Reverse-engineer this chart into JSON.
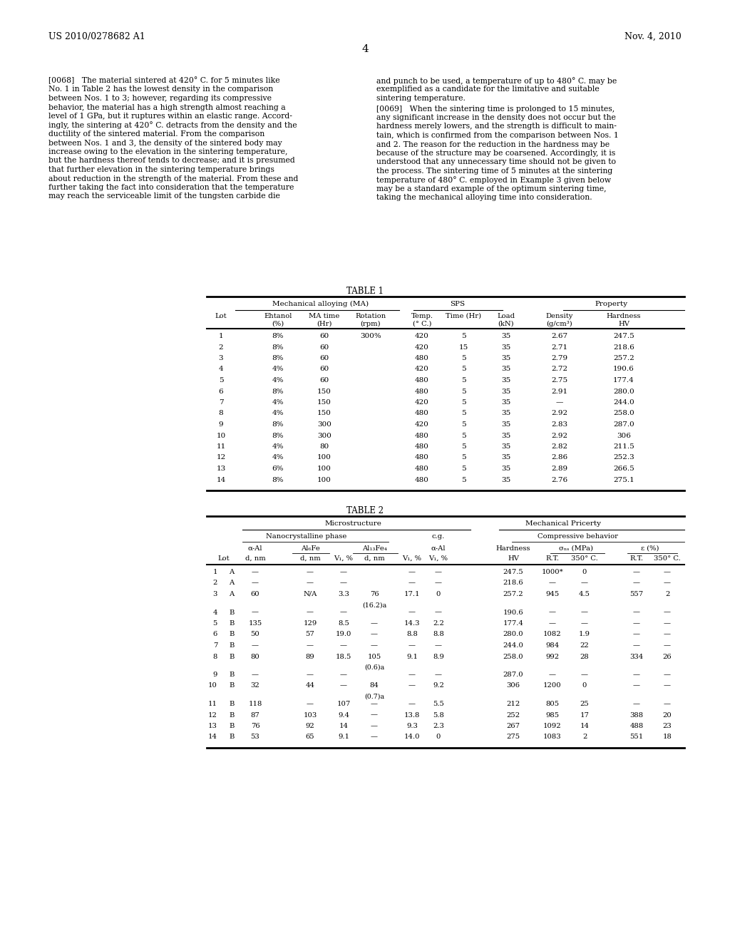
{
  "page_number": "4",
  "patent_number": "US 2010/0278682 A1",
  "patent_date": "Nov. 4, 2010",
  "background_color": "#ffffff",
  "para068_left_lines": [
    "[0068]   The material sintered at 420° C. for 5 minutes like",
    "No. 1 in Table 2 has the lowest density in the comparison",
    "between Nos. 1 to 3; however, regarding its compressive",
    "behavior, the material has a high strength almost reaching a",
    "level of 1 GPa, but it ruptures within an elastic range. Accord-",
    "ingly, the sintering at 420° C. detracts from the density and the",
    "ductility of the sintered material. From the comparison",
    "between Nos. 1 and 3, the density of the sintered body may",
    "increase owing to the elevation in the sintering temperature,",
    "but the hardness thereof tends to decrease; and it is presumed",
    "that further elevation in the sintering temperature brings",
    "about reduction in the strength of the material. From these and",
    "further taking the fact into consideration that the temperature",
    "may reach the serviceable limit of the tungsten carbide die"
  ],
  "para068_right_lines": [
    "and punch to be used, a temperature of up to 480° C. may be",
    "exemplified as a candidate for the limitative and suitable",
    "sintering temperature."
  ],
  "para069_right_lines": [
    "[0069]   When the sintering time is prolonged to 15 minutes,",
    "any significant increase in the density does not occur but the",
    "hardness merely lowers, and the strength is difficult to main-",
    "tain, which is confirmed from the comparison between Nos. 1",
    "and 2. The reason for the reduction in the hardness may be",
    "because of the structure may be coarsened. Accordingly, it is",
    "understood that any unnecessary time should not be given to",
    "the process. The sintering time of 5 minutes at the sintering",
    "temperature of 480° C. employed in Example 3 given below",
    "may be a standard example of the optimum sintering time,",
    "taking the mechanical alloying time into consideration."
  ],
  "table1_data": [
    [
      "1",
      "8%",
      "60",
      "300%",
      "420",
      "5",
      "35",
      "2.67",
      "247.5"
    ],
    [
      "2",
      "8%",
      "60",
      "",
      "420",
      "15",
      "35",
      "2.71",
      "218.6"
    ],
    [
      "3",
      "8%",
      "60",
      "",
      "480",
      "5",
      "35",
      "2.79",
      "257.2"
    ],
    [
      "4",
      "4%",
      "60",
      "",
      "420",
      "5",
      "35",
      "2.72",
      "190.6"
    ],
    [
      "5",
      "4%",
      "60",
      "",
      "480",
      "5",
      "35",
      "2.75",
      "177.4"
    ],
    [
      "6",
      "8%",
      "150",
      "",
      "480",
      "5",
      "35",
      "2.91",
      "280.0"
    ],
    [
      "7",
      "4%",
      "150",
      "",
      "420",
      "5",
      "35",
      "—",
      "244.0"
    ],
    [
      "8",
      "4%",
      "150",
      "",
      "480",
      "5",
      "35",
      "2.92",
      "258.0"
    ],
    [
      "9",
      "8%",
      "300",
      "",
      "420",
      "5",
      "35",
      "2.83",
      "287.0"
    ],
    [
      "10",
      "8%",
      "300",
      "",
      "480",
      "5",
      "35",
      "2.92",
      "306"
    ],
    [
      "11",
      "4%",
      "80",
      "",
      "480",
      "5",
      "35",
      "2.82",
      "211.5"
    ],
    [
      "12",
      "4%",
      "100",
      "",
      "480",
      "5",
      "35",
      "2.86",
      "252.3"
    ],
    [
      "13",
      "6%",
      "100",
      "",
      "480",
      "5",
      "35",
      "2.89",
      "266.5"
    ],
    [
      "14",
      "8%",
      "100",
      "",
      "480",
      "5",
      "35",
      "2.76",
      "275.1"
    ]
  ],
  "table2_data": [
    [
      "1",
      "A",
      "—",
      "—",
      "—",
      "",
      "—",
      "—",
      "247.5",
      "1000*",
      "0",
      "—",
      "—"
    ],
    [
      "2",
      "A",
      "—",
      "—",
      "—",
      "",
      "—",
      "—",
      "218.6",
      "—",
      "—",
      "—",
      "—"
    ],
    [
      "3",
      "A",
      "60",
      "N/A",
      "3.3",
      "76",
      "17.1",
      "0",
      "257.2",
      "945",
      "4.5",
      "557",
      "2"
    ],
    [
      "3b",
      "",
      "",
      "",
      "",
      "(16.2)a",
      "",
      "",
      "",
      "",
      "",
      "",
      ""
    ],
    [
      "4",
      "B",
      "—",
      "—",
      "—",
      "",
      "—",
      "—",
      "190.6",
      "—",
      "—",
      "—",
      "—"
    ],
    [
      "5",
      "B",
      "135",
      "129",
      "8.5",
      "—",
      "14.3",
      "2.2",
      "177.4",
      "—",
      "—",
      "—",
      "—"
    ],
    [
      "6",
      "B",
      "50",
      "57",
      "19.0",
      "—",
      "8.8",
      "8.8",
      "280.0",
      "1082",
      "1.9",
      "—",
      "—"
    ],
    [
      "7",
      "B",
      "—",
      "—",
      "—",
      "—",
      "—",
      "—",
      "244.0",
      "984",
      "22",
      "—",
      "—"
    ],
    [
      "8",
      "B",
      "80",
      "89",
      "18.5",
      "105",
      "9.1",
      "8.9",
      "258.0",
      "992",
      "28",
      "334",
      "26"
    ],
    [
      "8b",
      "",
      "",
      "",
      "",
      "(0.6)a",
      "",
      "",
      "",
      "",
      "",
      "",
      ""
    ],
    [
      "9",
      "B",
      "—",
      "—",
      "—",
      "",
      "—",
      "—",
      "287.0",
      "—",
      "—",
      "—",
      "—"
    ],
    [
      "10",
      "B",
      "32",
      "44",
      "—",
      "84",
      "—",
      "9.2",
      "306",
      "1200",
      "0",
      "—",
      "—"
    ],
    [
      "10b",
      "",
      "",
      "",
      "",
      "(0.7)a",
      "",
      "",
      "",
      "",
      "",
      "",
      ""
    ],
    [
      "11",
      "B",
      "118",
      "—",
      "107",
      "—",
      "—",
      "5.5",
      "212",
      "805",
      "25",
      "—",
      "—"
    ],
    [
      "12",
      "B",
      "87",
      "103",
      "9.4",
      "—",
      "13.8",
      "5.8",
      "252",
      "985",
      "17",
      "388",
      "20"
    ],
    [
      "13",
      "B",
      "76",
      "92",
      "14",
      "—",
      "9.3",
      "2.3",
      "267",
      "1092",
      "14",
      "488",
      "23"
    ],
    [
      "14",
      "B",
      "53",
      "65",
      "9.1",
      "—",
      "14.0",
      "0",
      "275",
      "1083",
      "2",
      "551",
      "18"
    ]
  ]
}
